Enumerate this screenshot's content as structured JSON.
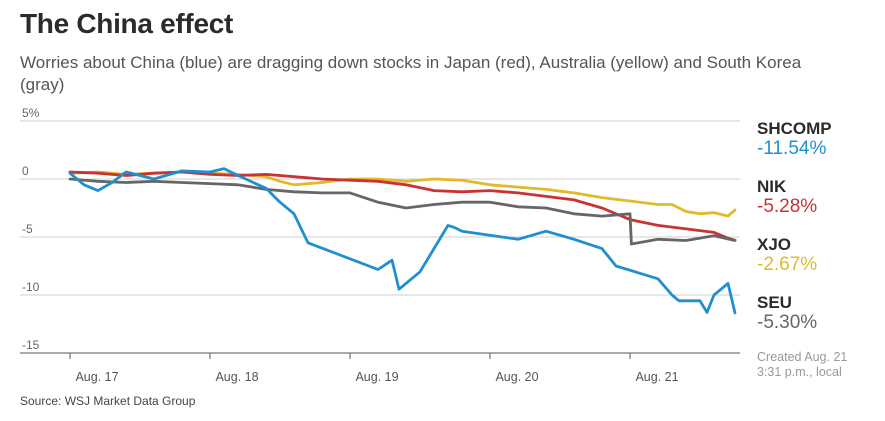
{
  "title": "The China effect",
  "subtitle": "Worries about China (blue) are dragging down stocks in Japan (red), Australia (yellow) and South Korea (gray)",
  "source": "Source: WSJ Market Data Group",
  "created_line1": "Created Aug. 21",
  "created_line2": "3:31 p.m., local",
  "legend": [
    {
      "name": "SHCOMP",
      "value": "-11.54%",
      "color": "#1f8fd0"
    },
    {
      "name": "NIK",
      "value": "-5.28%",
      "color": "#c83434"
    },
    {
      "name": "XJO",
      "value": "-2.67%",
      "color": "#e3b92c"
    },
    {
      "name": "SEU",
      "value": "-5.30%",
      "color": "#666666"
    }
  ],
  "chart_data": {
    "type": "line",
    "title": "The China effect",
    "ylabel": "",
    "xlabel": "",
    "ylim": [
      -15,
      5
    ],
    "xlim": [
      0,
      4.9
    ],
    "y_ticks": [
      5,
      0,
      -5,
      -10,
      -15
    ],
    "y_tick_labels": [
      "5%",
      "0",
      "-5",
      "-10",
      "-15"
    ],
    "x_ticks": [
      0,
      1,
      2,
      3,
      4
    ],
    "x_tick_labels": [
      "Aug. 17",
      "Aug. 18",
      "Aug. 19",
      "Aug. 20",
      "Aug. 21"
    ],
    "series": [
      {
        "name": "XJO",
        "color": "#e3b92c",
        "x": [
          0,
          0.2,
          0.4,
          0.6,
          0.8,
          1.0,
          1.2,
          1.4,
          1.5,
          1.6,
          1.8,
          2.0,
          2.2,
          2.4,
          2.6,
          2.8,
          3.0,
          3.2,
          3.4,
          3.6,
          3.8,
          4.0,
          4.2,
          4.3,
          4.4,
          4.5,
          4.6,
          4.7,
          4.75
        ],
        "y": [
          0.5,
          0.6,
          0.4,
          0.5,
          0.6,
          0.5,
          0.4,
          0.2,
          -0.2,
          -0.5,
          -0.3,
          0.0,
          0.0,
          -0.2,
          0.0,
          -0.1,
          -0.5,
          -0.7,
          -0.9,
          -1.2,
          -1.6,
          -1.9,
          -2.2,
          -2.2,
          -2.8,
          -3.0,
          -2.9,
          -3.2,
          -2.67
        ]
      },
      {
        "name": "NIK",
        "color": "#c83434",
        "x": [
          0,
          0.2,
          0.4,
          0.6,
          0.8,
          1.0,
          1.2,
          1.4,
          1.6,
          1.8,
          2.0,
          2.2,
          2.4,
          2.6,
          2.8,
          3.0,
          3.2,
          3.4,
          3.6,
          3.8,
          4.0,
          4.2,
          4.4,
          4.6,
          4.7,
          4.75
        ],
        "y": [
          0.6,
          0.5,
          0.3,
          0.5,
          0.6,
          0.4,
          0.3,
          0.4,
          0.2,
          0.0,
          -0.1,
          -0.2,
          -0.5,
          -1.0,
          -1.1,
          -1.0,
          -1.2,
          -1.5,
          -1.8,
          -2.5,
          -3.5,
          -4.0,
          -4.3,
          -4.6,
          -5.1,
          -5.28
        ]
      },
      {
        "name": "SEU",
        "color": "#666666",
        "x": [
          0,
          0.2,
          0.4,
          0.6,
          0.8,
          1.0,
          1.2,
          1.4,
          1.6,
          1.8,
          2.0,
          2.2,
          2.4,
          2.6,
          2.8,
          3.0,
          3.2,
          3.4,
          3.6,
          3.8,
          4.0,
          4.01,
          4.2,
          4.4,
          4.6,
          4.75
        ],
        "y": [
          0.0,
          -0.2,
          -0.3,
          -0.2,
          -0.3,
          -0.4,
          -0.5,
          -0.9,
          -1.1,
          -1.2,
          -1.2,
          -2.0,
          -2.5,
          -2.2,
          -2.0,
          -2.0,
          -2.4,
          -2.5,
          -3.0,
          -3.2,
          -3.0,
          -5.6,
          -5.2,
          -5.3,
          -4.9,
          -5.3
        ]
      },
      {
        "name": "SHCOMP",
        "color": "#1f8fd0",
        "x": [
          0,
          0.1,
          0.2,
          0.3,
          0.4,
          0.6,
          0.8,
          1.0,
          1.1,
          1.2,
          1.4,
          1.5,
          1.6,
          1.7,
          2.2,
          2.3,
          2.35,
          2.5,
          2.6,
          2.7,
          2.75,
          2.8,
          3.2,
          3.4,
          3.6,
          3.8,
          3.9,
          4.2,
          4.3,
          4.35,
          4.5,
          4.55,
          4.6,
          4.7,
          4.75
        ],
        "y": [
          0.5,
          -0.5,
          -1.0,
          -0.3,
          0.6,
          0.0,
          0.7,
          0.6,
          0.9,
          0.3,
          -0.8,
          -2.0,
          -3.0,
          -5.5,
          -7.8,
          -7.0,
          -9.5,
          -8.0,
          -6.0,
          -4.0,
          -4.2,
          -4.5,
          -5.2,
          -4.5,
          -5.2,
          -6.0,
          -7.5,
          -8.6,
          -10.0,
          -10.5,
          -10.5,
          -11.5,
          -10.0,
          -9.0,
          -11.54
        ]
      }
    ]
  }
}
